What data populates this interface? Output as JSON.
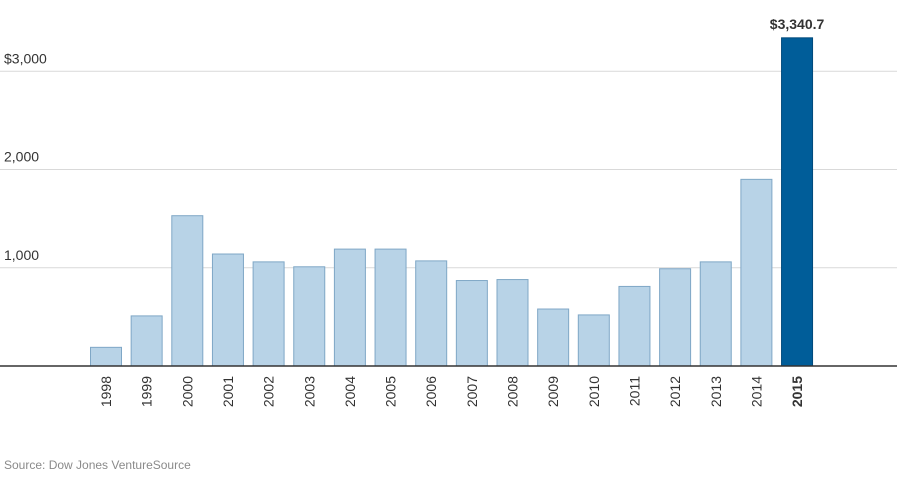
{
  "chart_data": {
    "type": "bar",
    "categories": [
      "1998",
      "1999",
      "2000",
      "2001",
      "2002",
      "2003",
      "2004",
      "2005",
      "2006",
      "2007",
      "2008",
      "2009",
      "2010",
      "2011",
      "2012",
      "2013",
      "2014",
      "2015"
    ],
    "values": [
      190,
      510,
      1530,
      1140,
      1060,
      1010,
      1190,
      1190,
      1070,
      870,
      880,
      580,
      520,
      810,
      990,
      1060,
      1900,
      3340.7
    ],
    "ylim": [
      0,
      3400
    ],
    "yticks": [
      {
        "value": 1000,
        "label": "1,000"
      },
      {
        "value": 2000,
        "label": "2,000"
      },
      {
        "value": 3000,
        "label": "$3,000"
      }
    ],
    "highlight_index": 17,
    "highlight_label": "$3,340.7",
    "grid": true,
    "colors": {
      "bar": "#b8d3e7",
      "bar_stroke": "#7fa7c6",
      "highlight": "#005d99",
      "grid": "#d9d9d9",
      "axis": "#333333",
      "text": "#333333"
    }
  },
  "source": "Source: Dow Jones VentureSource"
}
